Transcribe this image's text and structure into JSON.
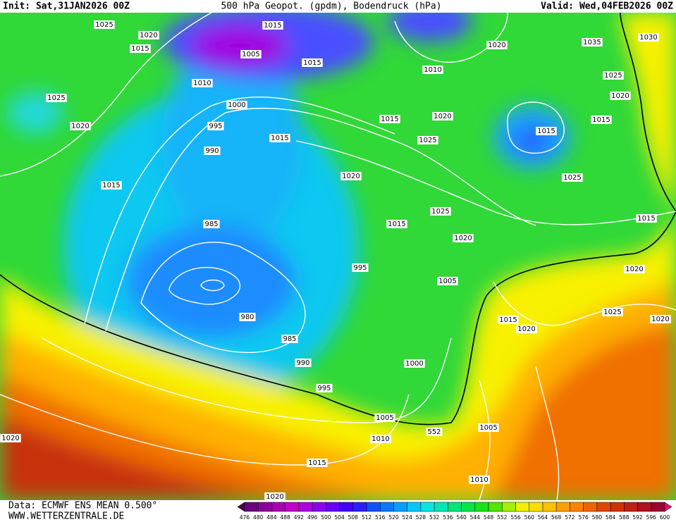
{
  "header": {
    "init": "Init: Sat,31JAN2026 00Z",
    "title": "500 hPa Geopot. (gpdm), Bodendruck (hPa)",
    "valid": "Valid: Wed,04FEB2026 00Z"
  },
  "footer": {
    "data": "Data: ECMWF ENS MEAN 0.500°",
    "site": "WWW.WETTERZENTRALE.DE"
  },
  "isobar_labels": [
    1025,
    1020,
    1015,
    1015,
    1005,
    1015,
    1010,
    1025,
    1020,
    1000,
    995,
    990,
    1015,
    1015,
    985,
    980,
    985,
    990,
    995,
    1020,
    1010,
    1035,
    1030,
    1025,
    1020,
    1015,
    1020,
    1025,
    1015,
    1015,
    1020,
    1025,
    1025,
    1015,
    1020,
    1015,
    995,
    1005,
    1020,
    1025,
    1015,
    1020,
    1020,
    1000,
    1005,
    552,
    1010,
    1005,
    1020,
    1015,
    1010,
    1020
  ],
  "colorbar": {
    "levels": [
      476,
      480,
      484,
      488,
      492,
      496,
      500,
      504,
      508,
      512,
      516,
      520,
      524,
      528,
      532,
      536,
      540,
      544,
      548,
      552,
      556,
      560,
      564,
      568,
      572,
      576,
      580,
      584,
      588,
      592,
      596,
      600
    ],
    "colors": [
      "#4b0050",
      "#6a0080",
      "#8a0099",
      "#a800b0",
      "#c400c8",
      "#b000e0",
      "#8c00f0",
      "#6a00ff",
      "#4400ff",
      "#2a20ff",
      "#1450ff",
      "#0a78ff",
      "#00a0ff",
      "#00c8ff",
      "#00e6e6",
      "#00e6b4",
      "#00e678",
      "#00e646",
      "#14e614",
      "#50e600",
      "#a0f000",
      "#f0f000",
      "#ffdc00",
      "#ffc000",
      "#ffa000",
      "#ff8200",
      "#f06400",
      "#e04600",
      "#d03200",
      "#c02010",
      "#b01020",
      "#a00030",
      "#e0106e"
    ]
  }
}
